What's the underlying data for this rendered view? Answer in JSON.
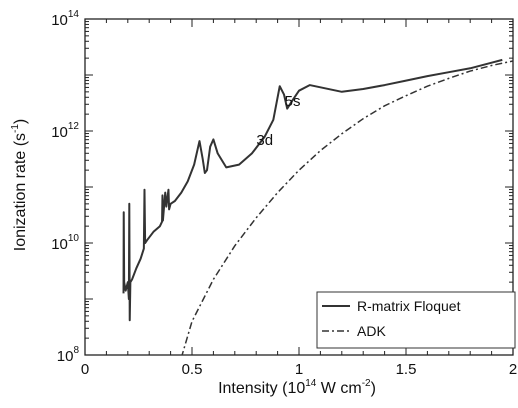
{
  "chart_data": {
    "type": "line",
    "xlabel": "Intensity (10",
    "xlabel_exp": "14",
    "xlabel_tail": " W cm",
    "xlabel_exp2": "-2",
    "xlabel_end": ")",
    "ylabel": "Ionization rate (s",
    "ylabel_exp": "-1",
    "ylabel_end": ")",
    "xlim": [
      0,
      2
    ],
    "ylim_log10": [
      8,
      14
    ],
    "yscale": "log",
    "grid": false,
    "legend_position": "bottom-right",
    "x_ticks": [
      {
        "value": 0,
        "label": "0"
      },
      {
        "value": 0.5,
        "label": "0.5"
      },
      {
        "value": 1,
        "label": "1"
      },
      {
        "value": 1.5,
        "label": "1.5"
      },
      {
        "value": 2,
        "label": "2"
      }
    ],
    "y_ticks": [
      {
        "value": 8,
        "base": "10",
        "exp": "8"
      },
      {
        "value": 10,
        "base": "10",
        "exp": "10"
      },
      {
        "value": 12,
        "base": "10",
        "exp": "12"
      },
      {
        "value": 14,
        "base": "10",
        "exp": "14"
      }
    ],
    "annotations": [
      {
        "text": "3d",
        "x": 0.84,
        "y_log10": 11.75
      },
      {
        "text": "5s",
        "x": 0.97,
        "y_log10": 12.45
      }
    ],
    "series": [
      {
        "name": "R-matrix Floquet",
        "style": "solid",
        "color": "#333333",
        "x_log_rate": [
          [
            0.18,
            9.1
          ],
          [
            0.181,
            10.55
          ],
          [
            0.183,
            9.3
          ],
          [
            0.19,
            9.15
          ],
          [
            0.2,
            9.3
          ],
          [
            0.205,
            9.0
          ],
          [
            0.207,
            10.7
          ],
          [
            0.209,
            8.62
          ],
          [
            0.212,
            9.3
          ],
          [
            0.22,
            9.35
          ],
          [
            0.24,
            9.55
          ],
          [
            0.26,
            9.72
          ],
          [
            0.275,
            9.9
          ],
          [
            0.278,
            10.95
          ],
          [
            0.281,
            10.0
          ],
          [
            0.29,
            10.05
          ],
          [
            0.32,
            10.2
          ],
          [
            0.35,
            10.3
          ],
          [
            0.36,
            10.38
          ],
          [
            0.362,
            10.85
          ],
          [
            0.364,
            10.4
          ],
          [
            0.375,
            10.9
          ],
          [
            0.38,
            10.65
          ],
          [
            0.39,
            10.95
          ],
          [
            0.393,
            10.6
          ],
          [
            0.4,
            10.7
          ],
          [
            0.42,
            10.75
          ],
          [
            0.45,
            10.9
          ],
          [
            0.48,
            11.1
          ],
          [
            0.51,
            11.4
          ],
          [
            0.535,
            11.82
          ],
          [
            0.55,
            11.5
          ],
          [
            0.56,
            11.25
          ],
          [
            0.57,
            11.3
          ],
          [
            0.585,
            11.72
          ],
          [
            0.6,
            11.85
          ],
          [
            0.62,
            11.6
          ],
          [
            0.66,
            11.35
          ],
          [
            0.72,
            11.4
          ],
          [
            0.78,
            11.6
          ],
          [
            0.84,
            11.9
          ],
          [
            0.88,
            12.2
          ],
          [
            0.91,
            12.8
          ],
          [
            0.93,
            12.65
          ],
          [
            0.945,
            12.4
          ],
          [
            0.97,
            12.55
          ],
          [
            1.0,
            12.72
          ],
          [
            1.05,
            12.82
          ],
          [
            1.1,
            12.78
          ],
          [
            1.2,
            12.7
          ],
          [
            1.3,
            12.75
          ],
          [
            1.4,
            12.82
          ],
          [
            1.5,
            12.9
          ],
          [
            1.6,
            12.98
          ],
          [
            1.7,
            13.05
          ],
          [
            1.8,
            13.12
          ],
          [
            1.9,
            13.22
          ],
          [
            1.95,
            13.27
          ]
        ]
      },
      {
        "name": "ADK",
        "style": "dashdot",
        "color": "#333333",
        "x_log_rate": [
          [
            0.45,
            7.95
          ],
          [
            0.5,
            8.6
          ],
          [
            0.6,
            9.35
          ],
          [
            0.7,
            9.95
          ],
          [
            0.8,
            10.45
          ],
          [
            0.9,
            10.9
          ],
          [
            1.0,
            11.3
          ],
          [
            1.1,
            11.65
          ],
          [
            1.2,
            11.95
          ],
          [
            1.3,
            12.22
          ],
          [
            1.4,
            12.45
          ],
          [
            1.5,
            12.63
          ],
          [
            1.6,
            12.8
          ],
          [
            1.7,
            12.94
          ],
          [
            1.8,
            13.07
          ],
          [
            1.9,
            13.17
          ],
          [
            2.0,
            13.25
          ]
        ]
      }
    ]
  }
}
